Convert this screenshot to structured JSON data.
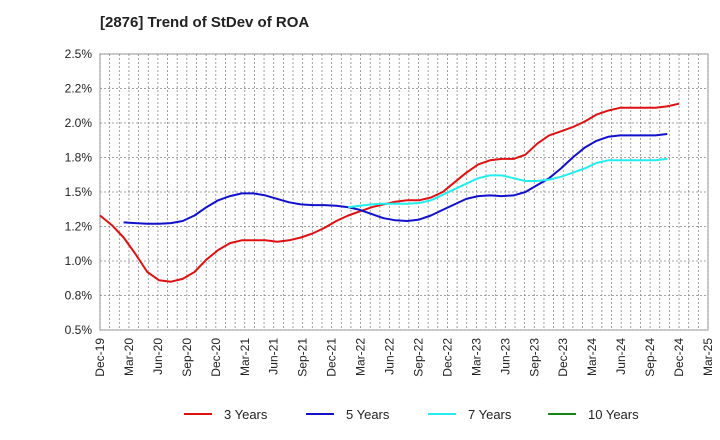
{
  "chart_data": {
    "type": "line",
    "title": "[2876]  Trend of StDev of ROA",
    "xlabel": "",
    "ylabel": "",
    "ylim": [
      0.5,
      2.5
    ],
    "y_ticks": [
      "0.5%",
      "0.8%",
      "1.0%",
      "1.2%",
      "1.5%",
      "1.8%",
      "2.0%",
      "2.2%",
      "2.5%"
    ],
    "x_ticks": [
      "Dec-19",
      "Mar-20",
      "Jun-20",
      "Sep-20",
      "Dec-20",
      "Mar-21",
      "Jun-21",
      "Sep-21",
      "Dec-21",
      "Mar-22",
      "Jun-22",
      "Sep-22",
      "Dec-22",
      "Mar-23",
      "Jun-23",
      "Sep-23",
      "Dec-23",
      "Mar-24",
      "Jun-24",
      "Sep-24",
      "Dec-24",
      "Mar-25"
    ],
    "grid": true,
    "legend_position": "bottom",
    "series": [
      {
        "name": "3 Years",
        "color": "#dd1111",
        "values": [
          1.33,
          1.26,
          1.17,
          1.05,
          0.92,
          0.86,
          0.85,
          0.87,
          0.92,
          1.01,
          1.08,
          1.13,
          1.15,
          1.15,
          1.15,
          1.14,
          1.15,
          1.17,
          1.2,
          1.24,
          1.29,
          1.33,
          1.36,
          1.39,
          1.41,
          1.43,
          1.44,
          1.44,
          1.46,
          1.5,
          1.57,
          1.64,
          1.7,
          1.73,
          1.74,
          1.74,
          1.77,
          1.85,
          1.91,
          1.94,
          1.97,
          2.01,
          2.06,
          2.09,
          2.11,
          2.11,
          2.11,
          2.11,
          2.12,
          2.14
        ]
      },
      {
        "name": "5 Years",
        "color": "#1111cc",
        "values": [
          null,
          null,
          1.28,
          1.275,
          1.27,
          1.27,
          1.275,
          1.29,
          1.33,
          1.39,
          1.44,
          1.47,
          1.49,
          1.49,
          1.475,
          1.45,
          1.425,
          1.41,
          1.405,
          1.405,
          1.4,
          1.39,
          1.37,
          1.34,
          1.31,
          1.295,
          1.29,
          1.3,
          1.33,
          1.37,
          1.41,
          1.45,
          1.47,
          1.475,
          1.47,
          1.475,
          1.5,
          1.55,
          1.6,
          1.67,
          1.75,
          1.82,
          1.87,
          1.9,
          1.91,
          1.91,
          1.91,
          1.91,
          1.92,
          null
        ]
      },
      {
        "name": "7 Years",
        "color": "#22eeee",
        "values": [
          null,
          null,
          null,
          null,
          null,
          null,
          null,
          null,
          null,
          null,
          null,
          null,
          null,
          null,
          null,
          null,
          null,
          null,
          null,
          null,
          null,
          1.39,
          1.4,
          1.41,
          1.415,
          1.415,
          1.415,
          1.42,
          1.44,
          1.48,
          1.52,
          1.56,
          1.6,
          1.62,
          1.62,
          1.6,
          1.58,
          1.58,
          1.59,
          1.61,
          1.64,
          1.67,
          1.71,
          1.73,
          1.73,
          1.73,
          1.73,
          1.73,
          1.74,
          null
        ]
      },
      {
        "name": "10 Years",
        "color": "#118811",
        "values": []
      }
    ]
  }
}
